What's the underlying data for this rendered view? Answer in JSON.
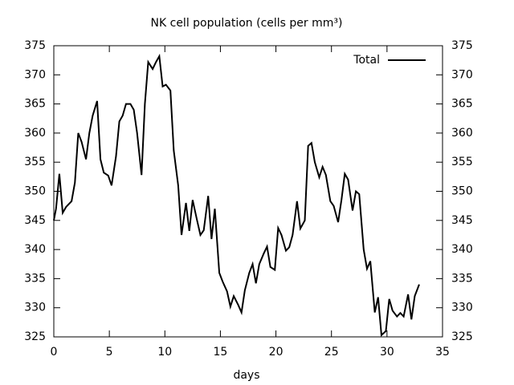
{
  "chart_data": {
    "type": "line",
    "title": "NK cell population (cells per mm³)",
    "xlabel": "days",
    "x": [
      0,
      0.2,
      0.5,
      0.8,
      1.1,
      1.6,
      1.9,
      2.2,
      2.5,
      2.9,
      3.2,
      3.5,
      3.9,
      4.2,
      4.5,
      4.9,
      5.2,
      5.6,
      5.9,
      6.2,
      6.5,
      6.9,
      7.2,
      7.5,
      7.9,
      8.2,
      8.5,
      8.9,
      9.2,
      9.5,
      9.8,
      10.1,
      10.5,
      10.8,
      11.2,
      11.5,
      11.9,
      12.2,
      12.5,
      12.9,
      13.2,
      13.5,
      13.9,
      14.2,
      14.5,
      14.9,
      15.2,
      15.6,
      15.9,
      16.2,
      16.6,
      16.9,
      17.2,
      17.6,
      17.9,
      18.2,
      18.5,
      18.9,
      19.2,
      19.5,
      19.9,
      20.2,
      20.5,
      20.9,
      21.2,
      21.5,
      21.9,
      22.2,
      22.6,
      22.9,
      23.2,
      23.5,
      23.9,
      24.2,
      24.5,
      24.9,
      25.2,
      25.6,
      25.9,
      26.2,
      26.5,
      26.9,
      27.2,
      27.5,
      27.9,
      28.2,
      28.5,
      28.9,
      29.2,
      29.5,
      29.9,
      30.2,
      30.5,
      30.9,
      31.2,
      31.5,
      31.9,
      32.2,
      32.5,
      32.9
    ],
    "series": [
      {
        "name": "Total",
        "color": "#000000",
        "values": [
          345,
          347,
          353,
          346.3,
          347.3,
          348.3,
          351.5,
          360,
          358.5,
          355.5,
          360,
          363,
          365.5,
          355.5,
          353.2,
          352.7,
          351,
          356,
          362,
          363,
          365,
          365,
          364,
          360,
          352.8,
          365,
          372.2,
          371,
          372.2,
          373.2,
          368,
          368.3,
          367.3,
          357,
          351,
          342.5,
          348,
          343.2,
          348.5,
          345,
          342.5,
          343.3,
          349.2,
          341.8,
          347,
          336,
          334.5,
          332.8,
          330.2,
          332,
          330.5,
          329.2,
          333,
          336,
          337.5,
          334.2,
          337.5,
          339.3,
          340.5,
          337,
          336.5,
          343.7,
          342.5,
          339.8,
          340.4,
          342.5,
          348.3,
          343.6,
          345,
          357.8,
          358.3,
          355,
          352.4,
          354.2,
          352.8,
          348.3,
          347.5,
          344.7,
          348.5,
          353,
          352,
          346.7,
          350,
          349.5,
          340,
          336.7,
          338,
          329.2,
          331.8,
          325.3,
          326,
          331.5,
          329.5,
          328.5,
          329.1,
          328.5,
          332.3,
          328,
          332,
          334
        ]
      }
    ],
    "xlim": [
      0,
      35
    ],
    "xticks": [
      0,
      5,
      10,
      15,
      20,
      25,
      30,
      35
    ],
    "ylim": [
      325,
      375
    ],
    "yticks": [
      325,
      330,
      335,
      340,
      345,
      350,
      355,
      360,
      365,
      370,
      375
    ],
    "y2lim": [
      325,
      375
    ],
    "y2ticks": [
      325,
      330,
      335,
      340,
      345,
      350,
      355,
      360,
      365,
      370,
      375
    ],
    "legend": "upper right"
  }
}
